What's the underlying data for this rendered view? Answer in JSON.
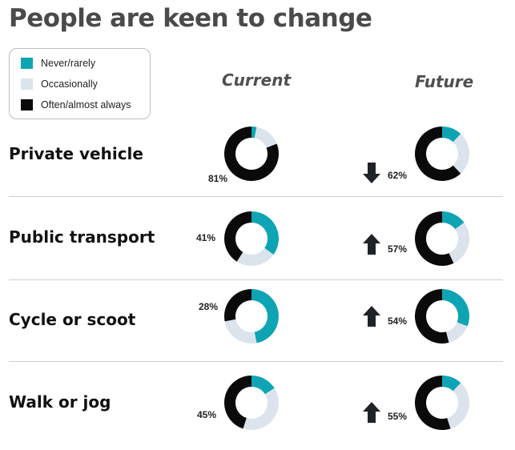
{
  "title": "People are keen to change",
  "legend": [
    {
      "label": "Never/rarely",
      "color": "#0ea4b4"
    },
    {
      "label": "Occasionally",
      "color": "#dbe3ec"
    },
    {
      "label": "Often/almost always",
      "color": "#0a0a0a"
    }
  ],
  "columns": {
    "current": "Current",
    "future": "Future"
  },
  "chart_data": {
    "type": "donut",
    "title": "People are keen to change",
    "series_names": [
      "Never/rarely",
      "Occasionally",
      "Often/almost always"
    ],
    "colors": [
      "#0ea4b4",
      "#dbe3ec",
      "#0a0a0a"
    ],
    "rows": [
      {
        "label": "Private vehicle",
        "current": {
          "pct_label": "81%",
          "values": [
            3,
            16,
            81
          ]
        },
        "future": {
          "pct_label": "62%",
          "trend": "down",
          "values": [
            12,
            26,
            62
          ]
        }
      },
      {
        "label": "Public transport",
        "current": {
          "pct_label": "41%",
          "values": [
            35,
            24,
            41
          ]
        },
        "future": {
          "pct_label": "57%",
          "trend": "up",
          "values": [
            15,
            28,
            57
          ]
        }
      },
      {
        "label": "Cycle or scoot",
        "current": {
          "pct_label": "28%",
          "values": [
            47,
            25,
            28
          ]
        },
        "future": {
          "pct_label": "54%",
          "trend": "up",
          "values": [
            31,
            15,
            54
          ]
        }
      },
      {
        "label": "Walk or jog",
        "current": {
          "pct_label": "45%",
          "values": [
            16,
            39,
            45
          ]
        },
        "future": {
          "pct_label": "55%",
          "trend": "up",
          "values": [
            12,
            33,
            55
          ]
        }
      }
    ]
  }
}
